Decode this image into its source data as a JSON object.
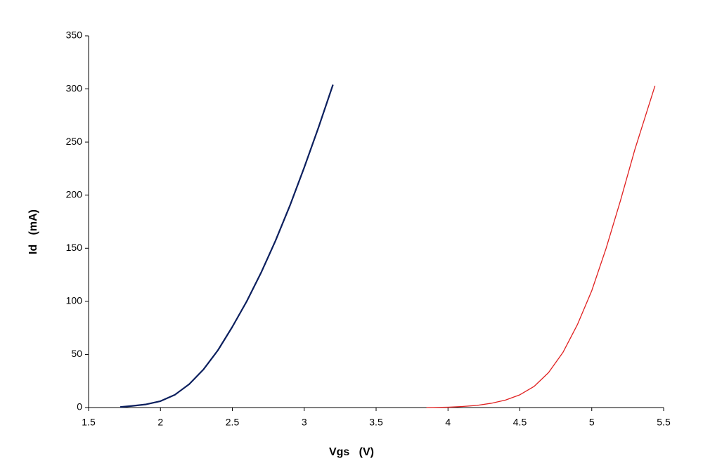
{
  "chart_data": {
    "type": "line",
    "x_label": "Vgs   (V)",
    "y_label": "Id   (mA)",
    "xlim": [
      1.5,
      5.5
    ],
    "xticks": [
      1.5,
      2,
      2.5,
      3,
      3.5,
      4,
      4.5,
      5,
      5.5
    ],
    "ylim": [
      0,
      350
    ],
    "yticks": [
      0,
      50,
      100,
      150,
      200,
      250,
      300,
      350
    ],
    "grid": false,
    "series": [
      {
        "color": "#0b1f5e",
        "x": [
          1.72,
          1.8,
          1.9,
          2.0,
          2.1,
          2.2,
          2.3,
          2.4,
          2.5,
          2.6,
          2.7,
          2.8,
          2.9,
          3.0,
          3.1,
          3.2
        ],
        "values": [
          0.5,
          1.5,
          3,
          6,
          12,
          22,
          36,
          54,
          76,
          100,
          127,
          157,
          190,
          226,
          264,
          304
        ]
      },
      {
        "color": "#e02020",
        "x": [
          3.85,
          4.0,
          4.1,
          4.2,
          4.3,
          4.4,
          4.5,
          4.6,
          4.7,
          4.8,
          4.9,
          5.0,
          5.1,
          5.2,
          5.3,
          5.44
        ],
        "values": [
          0,
          0.3,
          1,
          2,
          4,
          7,
          12,
          20,
          33,
          52,
          78,
          110,
          150,
          195,
          243,
          303
        ]
      }
    ]
  }
}
